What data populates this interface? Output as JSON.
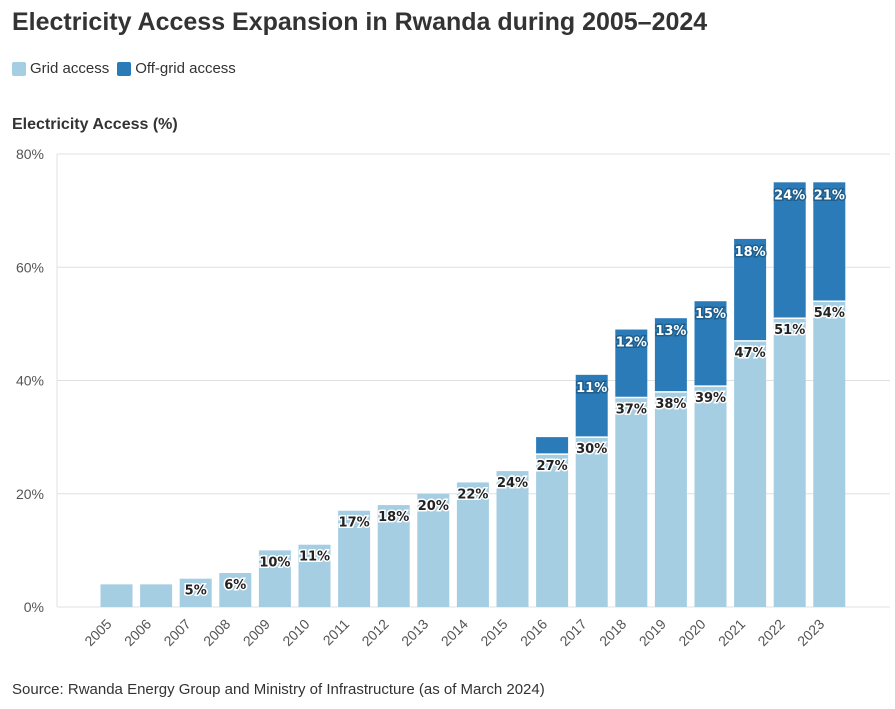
{
  "header": {
    "title": "Electricity Access Expansion in Rwanda during 2005–2024"
  },
  "legend": {
    "items": [
      {
        "label": "Grid access",
        "color": "#a6cee3"
      },
      {
        "label": "Off-grid access",
        "color": "#2b7bb9"
      }
    ]
  },
  "footer": {
    "source": "Source: Rwanda Energy Group and Ministry of Infrastructure (as of March 2024)"
  },
  "chart_data": {
    "type": "bar",
    "stacked": true,
    "title": "Electricity Access Expansion in Rwanda during 2005–2024",
    "ylabel": "Electricity Access (%)",
    "xlabel": "",
    "ylim": [
      0,
      80
    ],
    "yticks": [
      0,
      20,
      40,
      60,
      80
    ],
    "ytick_labels": [
      "0%",
      "20%",
      "40%",
      "60%",
      "80%"
    ],
    "grid": true,
    "legend_position": "top-left",
    "categories": [
      "2005",
      "2006",
      "2007",
      "2008",
      "2009",
      "2010",
      "2011",
      "2012",
      "2013",
      "2014",
      "2015",
      "2016",
      "2017",
      "2018",
      "2019",
      "2020",
      "2021",
      "2022",
      "2023"
    ],
    "series": [
      {
        "name": "Grid access",
        "color": "#a6cee3",
        "values": [
          4,
          4,
          5,
          6,
          10,
          11,
          17,
          18,
          20,
          22,
          24,
          27,
          30,
          37,
          38,
          39,
          47,
          51,
          54
        ],
        "labels": [
          "",
          "",
          "5%",
          "6%",
          "10%",
          "11%",
          "17%",
          "18%",
          "20%",
          "22%",
          "24%",
          "27%",
          "30%",
          "37%",
          "38%",
          "39%",
          "47%",
          "51%",
          "54%"
        ]
      },
      {
        "name": "Off-grid access",
        "color": "#2b7bb9",
        "values": [
          0,
          0,
          0,
          0,
          0,
          0,
          0,
          0,
          0,
          0,
          0,
          3,
          11,
          12,
          13,
          15,
          18,
          24,
          21
        ],
        "labels": [
          "",
          "",
          "",
          "",
          "",
          "",
          "",
          "",
          "",
          "",
          "",
          "",
          "11%",
          "12%",
          "13%",
          "15%",
          "18%",
          "24%",
          "21%"
        ]
      }
    ]
  }
}
